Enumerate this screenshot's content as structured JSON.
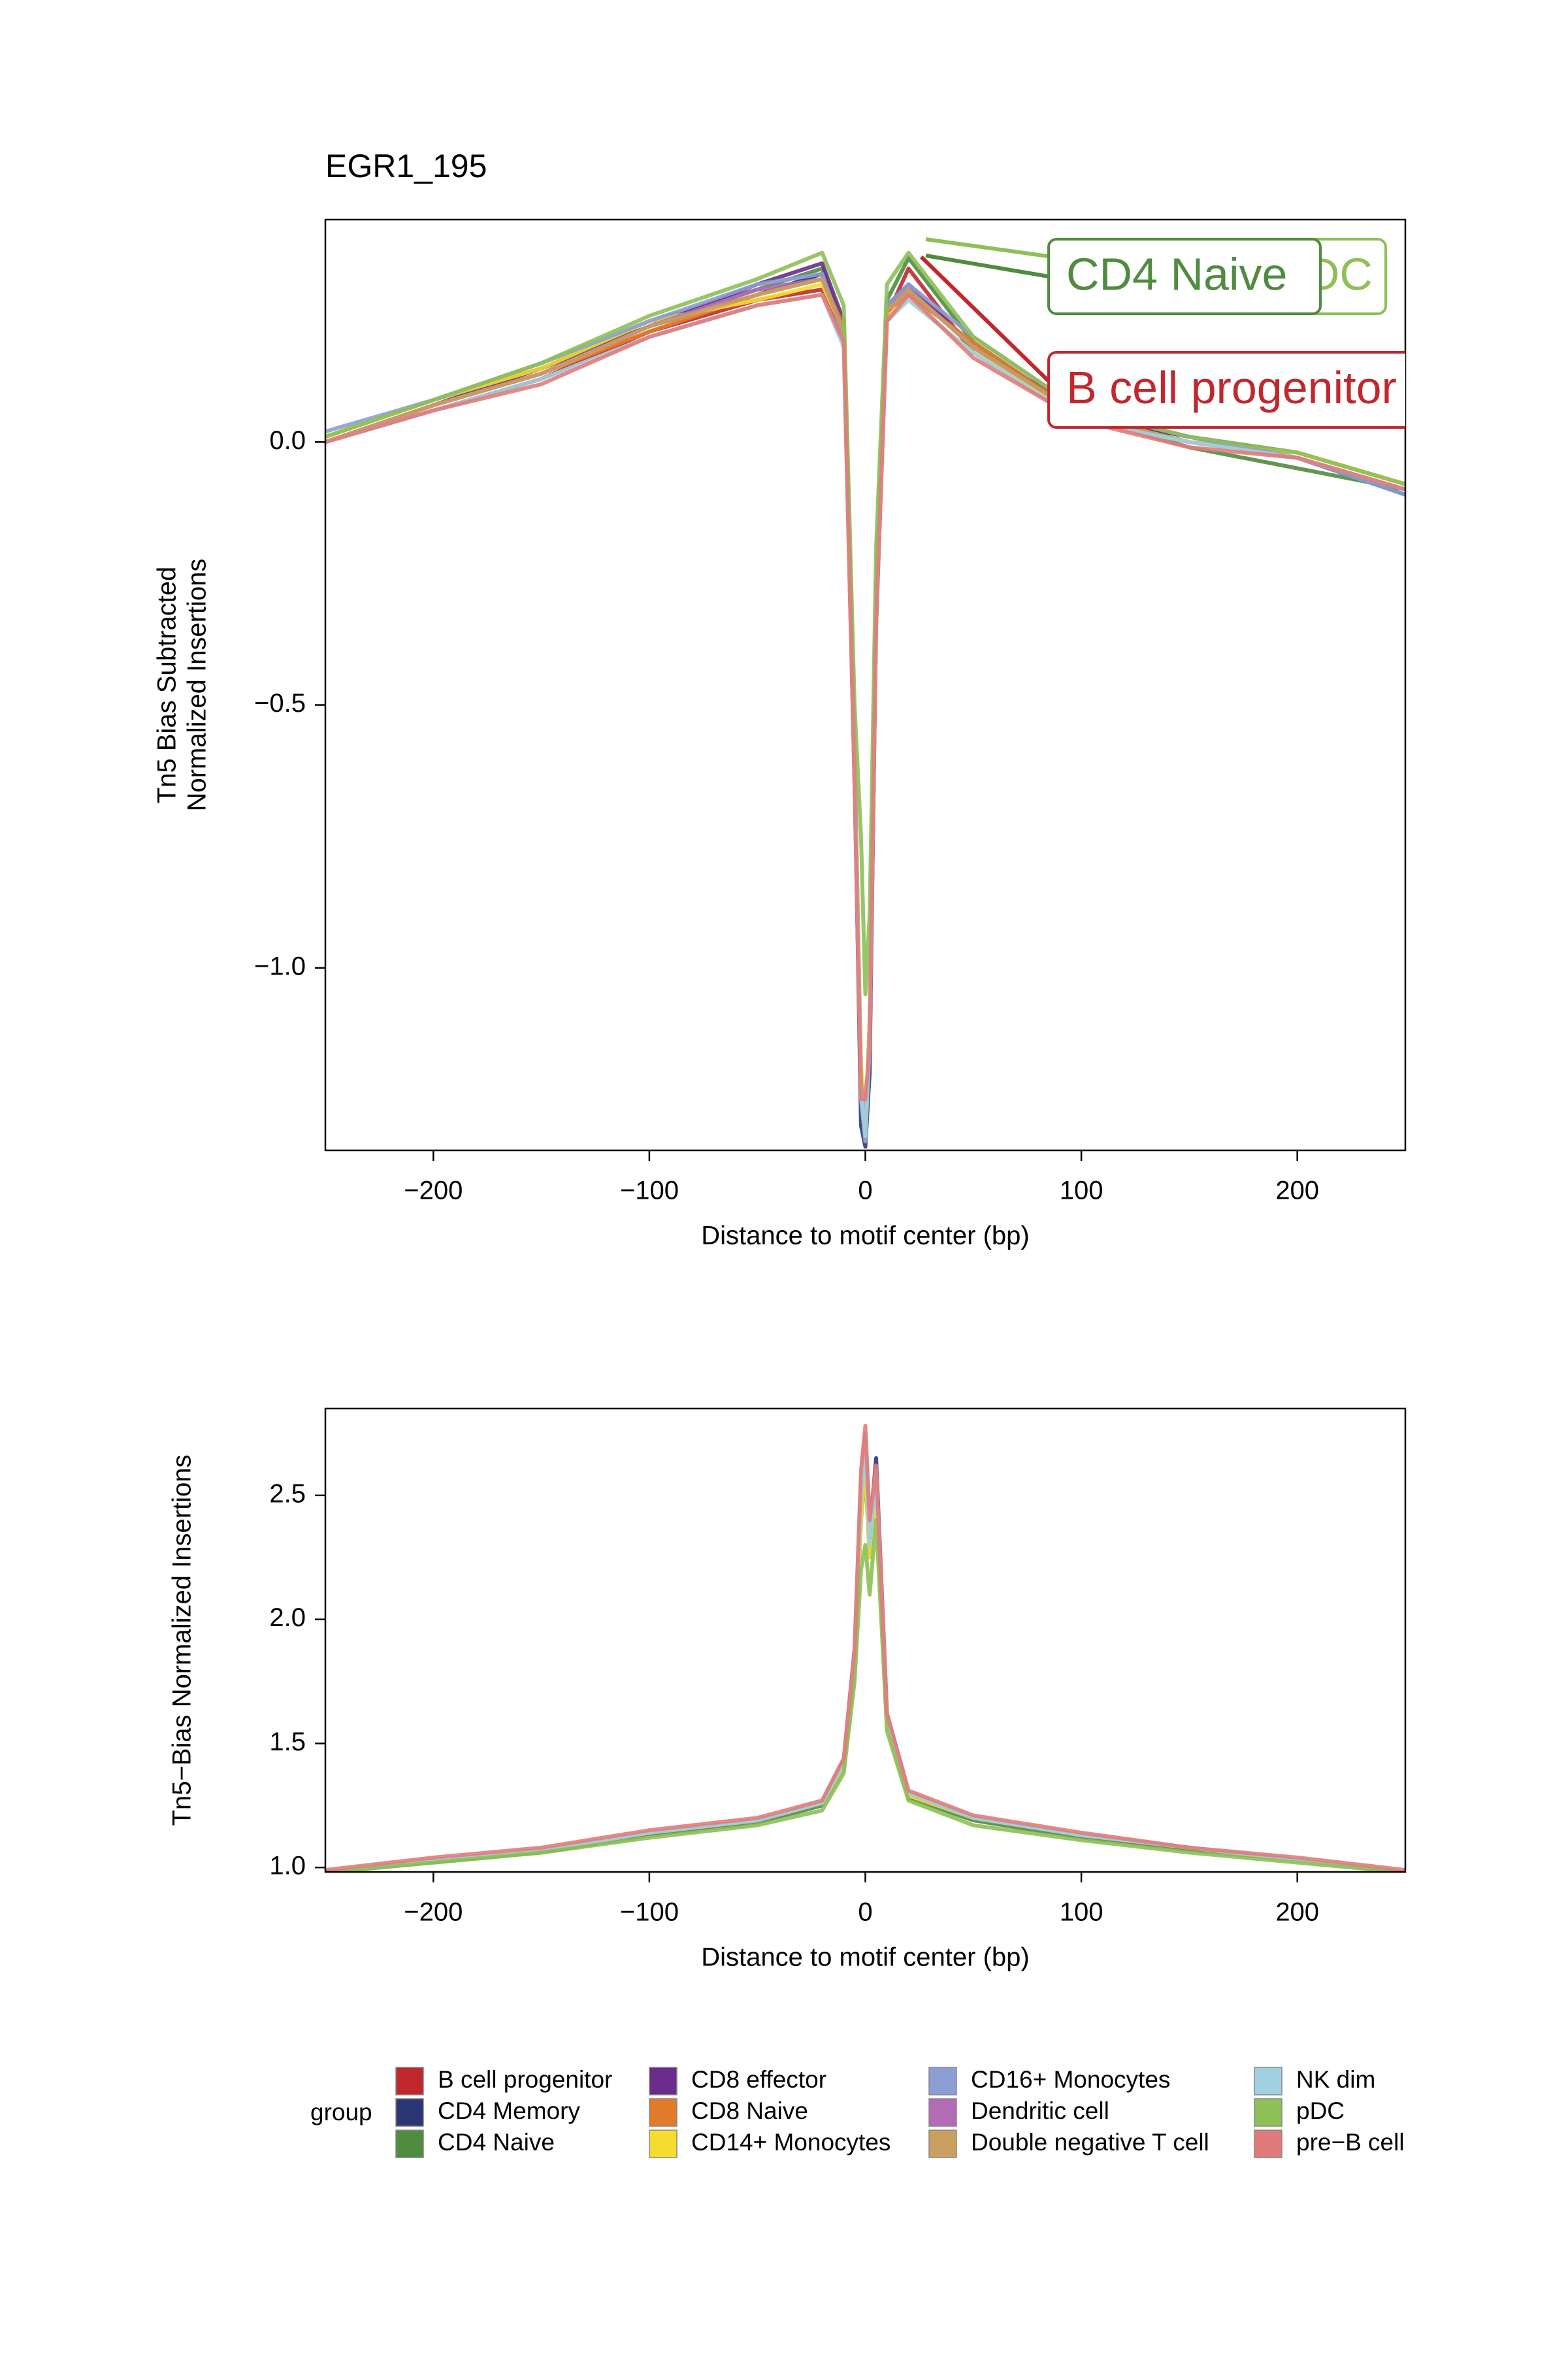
{
  "chart_data": [
    {
      "type": "line",
      "title": "EGR1_195",
      "ylabel": [
        "Tn5 Bias Subtracted",
        "Normalized Insertions"
      ],
      "xlabel": "Distance to motif center (bp)",
      "x": [
        -250,
        -200,
        -150,
        -100,
        -50,
        -20,
        -10,
        -5,
        -2,
        0,
        2,
        5,
        10,
        20,
        50,
        100,
        150,
        200,
        250
      ],
      "xlim": [
        -250,
        250
      ],
      "ylim": [
        -1.347,
        0.423
      ],
      "xticks": [
        {
          "value": -200,
          "label": "−200"
        },
        {
          "value": -100,
          "label": "−100"
        },
        0,
        100,
        200
      ],
      "yticks": [
        {
          "value": -1,
          "label": "−1.0"
        },
        {
          "value": -0.5,
          "label": "−0.5"
        },
        {
          "value": 0,
          "label": "0.0"
        }
      ],
      "legend_title": "group",
      "series": [
        {
          "name": "B cell progenitor",
          "color": "#c0282d",
          "values": [
            0.0,
            0.06,
            0.12,
            0.21,
            0.27,
            0.29,
            0.2,
            -0.65,
            -1.25,
            -1.28,
            -1.15,
            -0.35,
            0.24,
            0.33,
            0.17,
            0.04,
            0.0,
            -0.02,
            -0.08
          ]
        },
        {
          "name": "CD4 Memory",
          "color": "#2b3674",
          "values": [
            0.0,
            0.07,
            0.13,
            0.22,
            0.28,
            0.32,
            0.21,
            -0.62,
            -1.3,
            -1.34,
            -1.2,
            -0.32,
            0.25,
            0.29,
            0.18,
            0.05,
            0.01,
            -0.03,
            -0.1
          ]
        },
        {
          "name": "CD4 Naive",
          "color": "#4f8c3f",
          "values": [
            0.01,
            0.08,
            0.14,
            0.23,
            0.29,
            0.33,
            0.22,
            -0.58,
            -1.22,
            -1.3,
            -1.12,
            -0.28,
            0.27,
            0.35,
            0.19,
            0.05,
            -0.01,
            -0.05,
            -0.09
          ]
        },
        {
          "name": "CD8 effector",
          "color": "#6a2d8c",
          "values": [
            0.0,
            0.07,
            0.14,
            0.22,
            0.3,
            0.34,
            0.23,
            -0.6,
            -1.25,
            -1.32,
            -1.1,
            -0.3,
            0.26,
            0.3,
            0.18,
            0.06,
            0.01,
            -0.02,
            -0.08
          ]
        },
        {
          "name": "CD8 Naive",
          "color": "#e17b2a",
          "values": [
            0.0,
            0.07,
            0.13,
            0.21,
            0.28,
            0.31,
            0.22,
            -0.6,
            -1.2,
            -1.33,
            -1.1,
            -0.3,
            0.25,
            0.28,
            0.19,
            0.05,
            0.0,
            -0.03,
            -0.09
          ]
        },
        {
          "name": "CD14+ Monocytes",
          "color": "#f5dc2e",
          "values": [
            0.01,
            0.08,
            0.14,
            0.23,
            0.27,
            0.3,
            0.21,
            -0.62,
            -1.18,
            -1.3,
            -1.1,
            -0.3,
            0.24,
            0.27,
            0.17,
            0.05,
            0.0,
            -0.02,
            -0.08
          ]
        },
        {
          "name": "CD16+ Monocytes",
          "color": "#8c9fd4",
          "values": [
            0.02,
            0.08,
            0.15,
            0.23,
            0.3,
            0.32,
            0.2,
            -0.6,
            -1.25,
            -1.33,
            -1.15,
            -0.3,
            0.26,
            0.3,
            0.2,
            0.06,
            0.01,
            -0.03,
            -0.1
          ]
        },
        {
          "name": "Dendritic cell",
          "color": "#b26bb5",
          "values": [
            0.0,
            0.07,
            0.13,
            0.22,
            0.29,
            0.31,
            0.21,
            -0.6,
            -1.22,
            -1.3,
            -1.12,
            -0.3,
            0.25,
            0.29,
            0.18,
            0.05,
            0.0,
            -0.03,
            -0.09
          ]
        },
        {
          "name": "Double negative T cell",
          "color": "#c9a060",
          "values": [
            0.0,
            0.07,
            0.13,
            0.22,
            0.28,
            0.31,
            0.21,
            -0.61,
            -1.22,
            -1.31,
            -1.12,
            -0.31,
            0.25,
            0.29,
            0.18,
            0.05,
            0.0,
            -0.03,
            -0.09
          ]
        },
        {
          "name": "NK dim",
          "color": "#9fd1e1",
          "values": [
            0.0,
            0.06,
            0.12,
            0.2,
            0.26,
            0.28,
            0.18,
            -0.62,
            -1.24,
            -1.32,
            -1.13,
            -0.32,
            0.23,
            0.27,
            0.17,
            0.04,
            0.0,
            -0.03,
            -0.09
          ]
        },
        {
          "name": "pDC",
          "color": "#8dc057",
          "values": [
            0.01,
            0.08,
            0.15,
            0.24,
            0.31,
            0.36,
            0.26,
            -0.5,
            -0.75,
            -1.05,
            -0.9,
            -0.2,
            0.3,
            0.36,
            0.2,
            0.06,
            0.01,
            -0.02,
            -0.08
          ]
        },
        {
          "name": "pre−B cell",
          "color": "#e17b7b",
          "values": [
            0.0,
            0.06,
            0.11,
            0.2,
            0.26,
            0.28,
            0.19,
            -0.65,
            -1.25,
            -1.25,
            -1.15,
            -0.35,
            0.23,
            0.28,
            0.16,
            0.04,
            -0.01,
            -0.03,
            -0.09
          ]
        }
      ],
      "annotations": [
        {
          "text": "pDC",
          "color": "#8dc057"
        },
        {
          "text": "CD4 Naive",
          "color": "#4f8c3f"
        },
        {
          "text": "B cell progenitor",
          "color": "#c0282d"
        }
      ]
    },
    {
      "type": "line",
      "ylabel": "Tn5−Bias Normalized Insertions",
      "xlabel": "Distance to motif center (bp)",
      "x": [
        -250,
        -200,
        -150,
        -100,
        -50,
        -20,
        -10,
        -5,
        -2,
        0,
        2,
        5,
        10,
        20,
        50,
        100,
        150,
        200,
        250
      ],
      "xlim": [
        -250,
        250
      ],
      "ylim": [
        0.982,
        2.85
      ],
      "xticks": [
        {
          "value": -200,
          "label": "−200"
        },
        {
          "value": -100,
          "label": "−100"
        },
        0,
        100,
        200
      ],
      "yticks": [
        {
          "value": 1,
          "label": "1.0"
        },
        1.5,
        {
          "value": 2,
          "label": "2.0"
        },
        2.5
      ],
      "series": [
        {
          "values": [
            0.98,
            1.03,
            1.07,
            1.14,
            1.19,
            1.26,
            1.42,
            1.85,
            2.5,
            2.7,
            2.3,
            2.58,
            1.6,
            1.3,
            1.2,
            1.13,
            1.08,
            1.03,
            0.98
          ]
        },
        {
          "values": [
            0.98,
            1.03,
            1.07,
            1.14,
            1.19,
            1.26,
            1.43,
            1.88,
            2.55,
            2.72,
            2.35,
            2.65,
            1.62,
            1.3,
            1.2,
            1.13,
            1.08,
            1.03,
            0.98
          ]
        },
        {
          "values": [
            0.98,
            1.02,
            1.06,
            1.13,
            1.18,
            1.25,
            1.4,
            1.8,
            2.4,
            2.6,
            2.25,
            2.55,
            1.58,
            1.28,
            1.19,
            1.12,
            1.07,
            1.03,
            0.98
          ]
        },
        {
          "values": [
            0.98,
            1.03,
            1.07,
            1.14,
            1.19,
            1.26,
            1.42,
            1.86,
            2.52,
            2.7,
            2.32,
            2.6,
            1.6,
            1.3,
            1.2,
            1.13,
            1.08,
            1.03,
            0.98
          ]
        },
        {
          "values": [
            0.98,
            1.03,
            1.07,
            1.14,
            1.19,
            1.26,
            1.42,
            1.84,
            2.5,
            2.68,
            2.3,
            2.58,
            1.6,
            1.3,
            1.2,
            1.13,
            1.08,
            1.03,
            0.98
          ]
        },
        {
          "values": [
            0.98,
            1.03,
            1.07,
            1.14,
            1.19,
            1.26,
            1.41,
            1.82,
            2.4,
            2.62,
            2.25,
            2.5,
            1.58,
            1.29,
            1.2,
            1.13,
            1.08,
            1.03,
            0.98
          ]
        },
        {
          "values": [
            0.98,
            1.03,
            1.07,
            1.14,
            1.19,
            1.26,
            1.42,
            1.85,
            2.55,
            2.75,
            2.35,
            2.6,
            1.6,
            1.3,
            1.2,
            1.13,
            1.08,
            1.03,
            0.98
          ]
        },
        {
          "values": [
            0.98,
            1.03,
            1.07,
            1.14,
            1.19,
            1.26,
            1.42,
            1.85,
            2.53,
            2.72,
            2.33,
            2.6,
            1.6,
            1.3,
            1.2,
            1.13,
            1.08,
            1.03,
            0.98
          ]
        },
        {
          "values": [
            0.98,
            1.03,
            1.07,
            1.14,
            1.19,
            1.26,
            1.42,
            1.85,
            2.54,
            2.73,
            2.34,
            2.6,
            1.6,
            1.3,
            1.2,
            1.13,
            1.08,
            1.03,
            0.98
          ]
        },
        {
          "values": [
            0.98,
            1.03,
            1.07,
            1.14,
            1.19,
            1.26,
            1.42,
            1.85,
            2.5,
            2.7,
            2.3,
            2.58,
            1.6,
            1.3,
            1.2,
            1.13,
            1.08,
            1.03,
            0.98
          ]
        },
        {
          "values": [
            0.98,
            1.02,
            1.06,
            1.12,
            1.17,
            1.23,
            1.38,
            1.75,
            2.2,
            2.3,
            2.1,
            2.4,
            1.55,
            1.27,
            1.17,
            1.11,
            1.06,
            1.02,
            0.98
          ]
        },
        {
          "values": [
            0.99,
            1.04,
            1.08,
            1.15,
            1.2,
            1.27,
            1.44,
            1.88,
            2.6,
            2.78,
            2.4,
            2.62,
            1.62,
            1.31,
            1.21,
            1.14,
            1.08,
            1.04,
            0.99
          ]
        }
      ]
    }
  ]
}
